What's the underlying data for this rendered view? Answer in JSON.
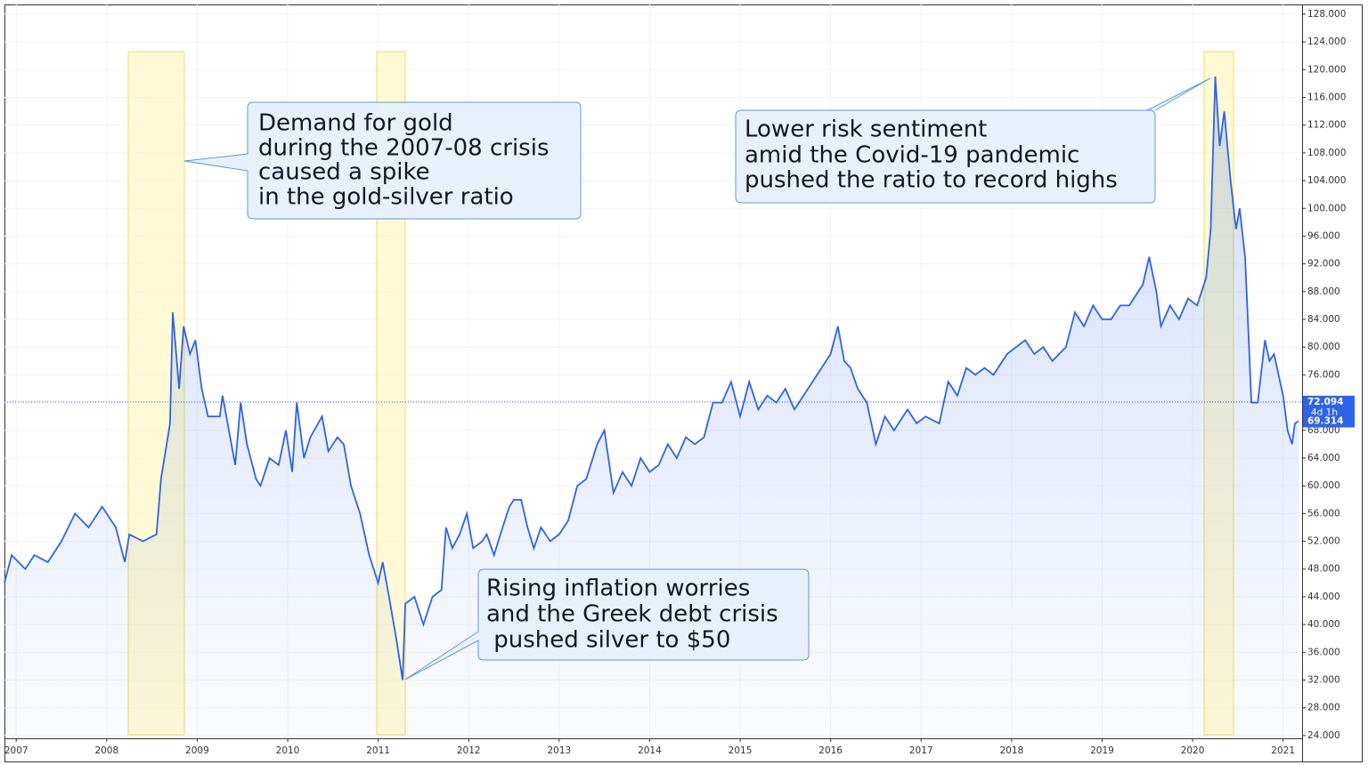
{
  "chart_data": {
    "type": "area",
    "color": "#2f63e8",
    "x": [
      2006.87,
      2006.95,
      2007.1,
      2007.2,
      2007.35,
      2007.5,
      2007.65,
      2007.8,
      2007.95,
      2008.1,
      2008.2,
      2008.25,
      2008.4,
      2008.55,
      2008.6,
      2008.7,
      2008.73,
      2008.8,
      2008.85,
      2008.92,
      2008.98,
      2009.05,
      2009.12,
      2009.25,
      2009.28,
      2009.35,
      2009.42,
      2009.48,
      2009.55,
      2009.65,
      2009.7,
      2009.8,
      2009.9,
      2009.98,
      2010.05,
      2010.1,
      2010.18,
      2010.25,
      2010.38,
      2010.45,
      2010.55,
      2010.62,
      2010.7,
      2010.8,
      2010.9,
      2011.0,
      2011.05,
      2011.12,
      2011.2,
      2011.27,
      2011.3,
      2011.4,
      2011.5,
      2011.6,
      2011.7,
      2011.75,
      2011.82,
      2011.9,
      2011.98,
      2012.05,
      2012.15,
      2012.2,
      2012.28,
      2012.35,
      2012.45,
      2012.5,
      2012.58,
      2012.65,
      2012.72,
      2012.8,
      2012.9,
      2013.0,
      2013.1,
      2013.2,
      2013.3,
      2013.42,
      2013.5,
      2013.6,
      2013.7,
      2013.8,
      2013.9,
      2014.0,
      2014.1,
      2014.2,
      2014.3,
      2014.4,
      2014.5,
      2014.6,
      2014.7,
      2014.8,
      2014.9,
      2015.0,
      2015.1,
      2015.2,
      2015.3,
      2015.4,
      2015.5,
      2015.6,
      2015.8,
      2015.9,
      2016.0,
      2016.08,
      2016.15,
      2016.22,
      2016.3,
      2016.4,
      2016.5,
      2016.6,
      2016.7,
      2016.85,
      2016.95,
      2017.05,
      2017.2,
      2017.3,
      2017.4,
      2017.5,
      2017.6,
      2017.7,
      2017.8,
      2017.95,
      2018.05,
      2018.15,
      2018.25,
      2018.35,
      2018.45,
      2018.6,
      2018.7,
      2018.8,
      2018.9,
      2019.0,
      2019.1,
      2019.2,
      2019.3,
      2019.45,
      2019.52,
      2019.6,
      2019.65,
      2019.75,
      2019.85,
      2019.95,
      2020.05,
      2020.15,
      2020.2,
      2020.25,
      2020.3,
      2020.35,
      2020.42,
      2020.48,
      2020.52,
      2020.58,
      2020.62,
      2020.65,
      2020.72,
      2020.8,
      2020.85,
      2020.9,
      2020.95,
      2021.0,
      2021.05,
      2021.1,
      2021.13,
      2021.17
    ],
    "values": [
      46,
      50,
      48,
      50,
      49,
      52,
      56,
      54,
      57,
      54,
      49,
      53,
      52,
      53,
      61,
      69,
      85,
      74,
      83,
      79,
      81,
      74,
      70,
      70,
      73,
      68,
      63,
      72,
      66,
      61,
      60,
      64,
      63,
      68,
      62,
      72,
      64,
      67,
      70,
      65,
      67,
      66,
      60,
      56,
      50,
      46,
      49,
      44,
      38,
      32,
      43,
      44,
      40,
      44,
      45,
      54,
      51,
      53,
      56,
      51,
      52,
      53,
      50,
      53,
      57,
      58,
      58,
      54,
      51,
      54,
      52,
      53,
      55,
      60,
      61,
      66,
      68,
      59,
      62,
      60,
      64,
      62,
      63,
      66,
      64,
      67,
      66,
      67,
      72,
      72,
      75,
      70,
      75,
      71,
      73,
      72,
      74,
      71,
      75,
      77,
      79,
      83,
      78,
      77,
      74,
      72,
      66,
      70,
      68,
      71,
      69,
      70,
      69,
      75,
      73,
      77,
      76,
      77,
      76,
      79,
      80,
      81,
      79,
      80,
      78,
      80,
      85,
      83,
      86,
      84,
      84,
      86,
      86,
      89,
      93,
      88,
      83,
      86,
      84,
      87,
      86,
      90,
      97,
      119,
      109,
      114,
      104,
      97,
      100,
      93,
      81,
      72,
      72,
      81,
      78,
      79,
      76,
      73,
      68,
      66,
      69,
      69.314
    ],
    "xlim": [
      2006.87,
      2021.21
    ],
    "xticks": [
      2007,
      2008,
      2009,
      2010,
      2011,
      2012,
      2013,
      2014,
      2015,
      2016,
      2017,
      2018,
      2019,
      2020,
      2021
    ],
    "ylim": [
      23.6,
      129.4
    ],
    "yticks": [
      {
        "value": 24,
        "label": "24.000"
      },
      {
        "value": 28,
        "label": "28.000"
      },
      {
        "value": 32,
        "label": "32.000"
      },
      {
        "value": 36,
        "label": "36.000"
      },
      {
        "value": 40,
        "label": "40.000"
      },
      {
        "value": 44,
        "label": "44.000"
      },
      {
        "value": 48,
        "label": "48.000"
      },
      {
        "value": 52,
        "label": "52.000"
      },
      {
        "value": 56,
        "label": "56.000"
      },
      {
        "value": 60,
        "label": "60.000"
      },
      {
        "value": 64,
        "label": "64.000"
      },
      {
        "value": 68,
        "label": "68.000"
      },
      {
        "value": 72,
        "label": "72.000"
      },
      {
        "value": 76,
        "label": "76.000"
      },
      {
        "value": 80,
        "label": "80.000"
      },
      {
        "value": 84,
        "label": "84.000"
      },
      {
        "value": 88,
        "label": "88.000"
      },
      {
        "value": 92,
        "label": "92.000"
      },
      {
        "value": 96,
        "label": "96.000"
      },
      {
        "value": 100,
        "label": "100.000"
      },
      {
        "value": 104,
        "label": "104.000"
      },
      {
        "value": 108,
        "label": "108.000"
      },
      {
        "value": 112,
        "label": "112.000"
      },
      {
        "value": 116,
        "label": "116.000"
      },
      {
        "value": 120,
        "label": "120.000"
      },
      {
        "value": 124,
        "label": "124.000"
      },
      {
        "value": 128,
        "label": "128.000"
      }
    ],
    "grid": true,
    "price_line": {
      "value": 72.094,
      "label": "72.094"
    },
    "countdown": "4d 1h",
    "current": {
      "value": 69.314,
      "label": "69.314"
    },
    "annotations": [
      [
        "Demand for gold",
        "during the 2007-08 crisis",
        "caused a spike",
        "in the gold-silver ratio"
      ],
      [
        "Rising inflation worries",
        "and the Greek debt crisis",
        " pushed silver to $50"
      ],
      [
        "Lower risk sentiment",
        "amid the Covid-19 pandemic",
        "pushed the ratio to record highs"
      ]
    ]
  }
}
